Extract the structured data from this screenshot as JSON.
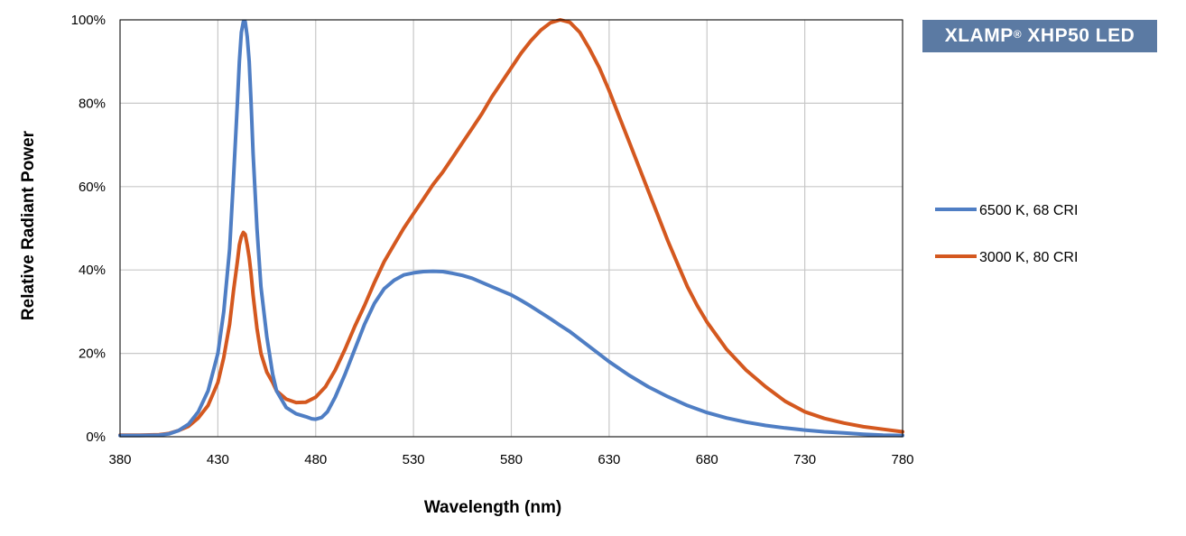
{
  "badge": {
    "main": "XLAMP",
    "mark": "®",
    "rest": " XHP50 LED",
    "bg_color": "#5b7aa3"
  },
  "chart_data": {
    "type": "line",
    "title": "",
    "xlabel": "Wavelength (nm)",
    "ylabel": "Relative Radiant Power",
    "xlim": [
      380,
      780
    ],
    "ylim": [
      0,
      100
    ],
    "x_ticks": [
      380,
      430,
      480,
      530,
      580,
      630,
      680,
      730,
      780
    ],
    "x_tick_labels": [
      "380",
      "430",
      "480",
      "530",
      "580",
      "630",
      "680",
      "730",
      "780"
    ],
    "y_ticks": [
      0,
      20,
      40,
      60,
      80,
      100
    ],
    "y_tick_labels": [
      "0%",
      "20%",
      "40%",
      "60%",
      "80%",
      "100%"
    ],
    "grid": true,
    "legend": "right",
    "series": [
      {
        "name": "6500 K, 68 CRI",
        "color": "#4f7ec4",
        "x": [
          380,
          390,
          400,
          405,
          410,
          415,
          420,
          425,
          430,
          433,
          436,
          438,
          440,
          441,
          442,
          443,
          444,
          445,
          446,
          447,
          448,
          450,
          452,
          455,
          458,
          460,
          465,
          470,
          475,
          478,
          480,
          483,
          486,
          490,
          495,
          500,
          505,
          510,
          515,
          520,
          525,
          530,
          535,
          540,
          545,
          550,
          555,
          560,
          565,
          570,
          575,
          580,
          585,
          590,
          595,
          600,
          605,
          610,
          620,
          630,
          640,
          650,
          660,
          670,
          680,
          690,
          700,
          710,
          720,
          730,
          740,
          750,
          760,
          770,
          780
        ],
        "y": [
          0.3,
          0.3,
          0.4,
          0.7,
          1.5,
          3,
          6,
          11,
          20,
          30,
          45,
          62,
          80,
          90,
          97,
          99.5,
          99.5,
          96,
          90,
          80,
          68,
          50,
          36,
          24,
          15,
          11,
          7,
          5.5,
          4.8,
          4.3,
          4.2,
          4.6,
          6,
          9.5,
          15,
          21,
          27,
          32,
          35.5,
          37.5,
          38.8,
          39.3,
          39.6,
          39.7,
          39.6,
          39.2,
          38.7,
          38,
          37,
          36,
          35,
          34,
          32.7,
          31.3,
          29.8,
          28.3,
          26.7,
          25.2,
          21.6,
          18,
          14.8,
          12,
          9.6,
          7.5,
          5.8,
          4.5,
          3.5,
          2.7,
          2.1,
          1.6,
          1.2,
          0.9,
          0.6,
          0.4,
          0.3
        ]
      },
      {
        "name": "3000 K, 80 CRI",
        "color": "#d4581f",
        "x": [
          380,
          390,
          400,
          405,
          410,
          415,
          420,
          425,
          430,
          433,
          436,
          438,
          440,
          441,
          442,
          443,
          444,
          445,
          446,
          447,
          448,
          450,
          452,
          455,
          458,
          460,
          465,
          470,
          475,
          480,
          485,
          490,
          495,
          500,
          505,
          510,
          515,
          520,
          525,
          530,
          535,
          540,
          545,
          550,
          555,
          560,
          565,
          570,
          575,
          580,
          585,
          590,
          595,
          600,
          605,
          610,
          615,
          620,
          625,
          630,
          635,
          640,
          645,
          650,
          655,
          660,
          665,
          670,
          675,
          680,
          690,
          700,
          710,
          720,
          730,
          740,
          750,
          760,
          770,
          780
        ],
        "y": [
          0.4,
          0.4,
          0.5,
          0.8,
          1.5,
          2.5,
          4.5,
          7.5,
          13,
          19,
          27,
          35,
          42,
          46,
          48,
          49,
          48.5,
          46,
          43,
          39,
          34,
          26,
          20,
          15.5,
          13,
          11,
          9,
          8.2,
          8.3,
          9.5,
          12,
          16,
          21,
          26.5,
          31.5,
          37,
          42,
          46,
          50,
          53.5,
          57,
          60.5,
          63.5,
          67,
          70.5,
          74,
          77.5,
          81.5,
          85,
          88.5,
          92,
          95,
          97.5,
          99.3,
          100,
          99.4,
          97,
          93,
          88.5,
          83,
          77,
          71,
          65,
          59,
          53,
          47,
          41.5,
          36,
          31.5,
          27.5,
          21,
          16,
          12,
          8.5,
          6,
          4.4,
          3.3,
          2.4,
          1.8,
          1.2
        ]
      }
    ]
  }
}
